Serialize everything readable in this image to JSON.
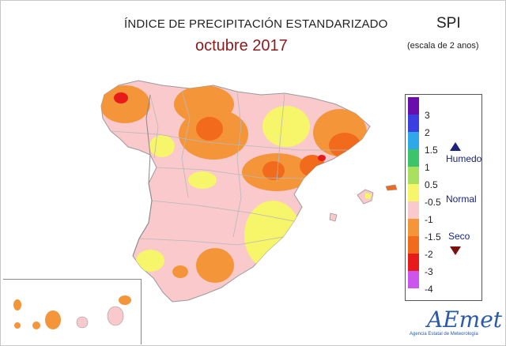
{
  "header": {
    "title": "ÍNDICE DE PRECIPITACIÓN ESTANDARIZADO",
    "subtitle": "octubre 2017",
    "index_name": "SPI",
    "scale_note": "(escala de 2 anos)"
  },
  "legend": {
    "bins": [
      {
        "label": "3",
        "color": "#6a0dad"
      },
      {
        "label": "2",
        "color": "#3a3fe0"
      },
      {
        "label": "1.5",
        "color": "#2fa8e8"
      },
      {
        "label": "1",
        "color": "#3cc46a"
      },
      {
        "label": "0.5",
        "color": "#a8e060"
      },
      {
        "label": "-0.5",
        "color": "#f7f56a"
      },
      {
        "label": "-1",
        "color": "#f9c9cb"
      },
      {
        "label": "-1.5",
        "color": "#f4953a"
      },
      {
        "label": "-2",
        "color": "#f26a1c"
      },
      {
        "label": "-3",
        "color": "#e81b1b"
      },
      {
        "label": "-4",
        "color": "#cc55ee"
      }
    ],
    "humid_label": "Humedo",
    "normal_label": "Normal",
    "dry_label": "Seco"
  },
  "logo": {
    "name": "AEmet",
    "subtitle": "Agencia Estatal de Meteorología"
  }
}
